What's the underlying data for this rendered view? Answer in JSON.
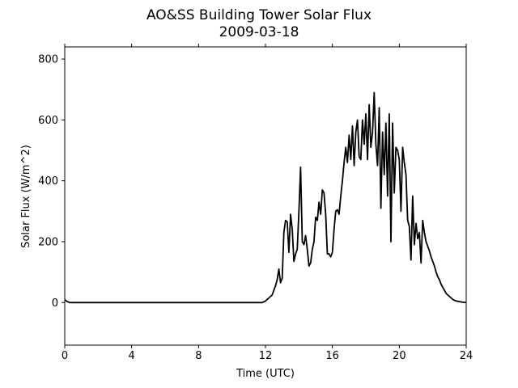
{
  "chart_data": {
    "type": "line",
    "title": "AO&SS Building Tower Solar Flux",
    "subtitle": "2009-03-18",
    "xlabel": "Time (UTC)",
    "ylabel": "Solar Flux (W/m^2)",
    "xlim": [
      0,
      24
    ],
    "ylim": [
      -140,
      840
    ],
    "xticks": [
      0,
      4,
      8,
      12,
      16,
      20,
      24
    ],
    "yticks": [
      0,
      200,
      400,
      600,
      800
    ],
    "grid": false,
    "line_color": "#000000",
    "series": [
      {
        "x": [
          0.0,
          0.1,
          0.2,
          0.3,
          0.5,
          1.0,
          2.0,
          4.0,
          6.0,
          8.0,
          10.0,
          11.8,
          12.0,
          12.2,
          12.4,
          12.5,
          12.6,
          12.7,
          12.8,
          12.9,
          13.0,
          13.1,
          13.2,
          13.3,
          13.4,
          13.5,
          13.6,
          13.7,
          13.8,
          13.9,
          14.0,
          14.1,
          14.2,
          14.3,
          14.4,
          14.5,
          14.6,
          14.7,
          14.8,
          14.9,
          15.0,
          15.1,
          15.2,
          15.3,
          15.4,
          15.5,
          15.6,
          15.7,
          15.8,
          15.9,
          16.0,
          16.1,
          16.2,
          16.3,
          16.4,
          16.5,
          16.6,
          16.7,
          16.8,
          16.9,
          17.0,
          17.1,
          17.2,
          17.3,
          17.4,
          17.5,
          17.6,
          17.7,
          17.8,
          17.9,
          18.0,
          18.1,
          18.2,
          18.3,
          18.4,
          18.5,
          18.6,
          18.7,
          18.8,
          18.9,
          19.0,
          19.1,
          19.2,
          19.3,
          19.4,
          19.5,
          19.6,
          19.7,
          19.8,
          19.9,
          20.0,
          20.1,
          20.2,
          20.3,
          20.4,
          20.5,
          20.6,
          20.7,
          20.8,
          20.9,
          21.0,
          21.1,
          21.2,
          21.3,
          21.4,
          21.5,
          21.6,
          21.7,
          21.8,
          21.9,
          22.0,
          22.1,
          22.2,
          22.3,
          22.4,
          22.5,
          22.6,
          22.7,
          22.8,
          23.0,
          23.2,
          23.4,
          23.6,
          23.8,
          24.0
        ],
        "y": [
          10,
          5,
          2,
          0,
          0,
          0,
          0,
          0,
          0,
          0,
          0,
          0,
          5,
          15,
          25,
          40,
          55,
          75,
          110,
          65,
          80,
          230,
          270,
          265,
          165,
          290,
          240,
          135,
          160,
          175,
          300,
          445,
          200,
          190,
          220,
          175,
          120,
          130,
          175,
          200,
          280,
          270,
          330,
          290,
          370,
          360,
          290,
          160,
          160,
          150,
          165,
          240,
          300,
          305,
          290,
          350,
          400,
          460,
          510,
          460,
          550,
          470,
          580,
          450,
          560,
          600,
          480,
          470,
          600,
          520,
          620,
          470,
          650,
          510,
          560,
          690,
          520,
          450,
          640,
          310,
          560,
          420,
          590,
          350,
          620,
          200,
          590,
          360,
          510,
          500,
          470,
          300,
          510,
          460,
          420,
          270,
          250,
          140,
          350,
          190,
          260,
          210,
          230,
          130,
          270,
          230,
          200,
          185,
          170,
          150,
          135,
          120,
          100,
          85,
          75,
          60,
          50,
          40,
          30,
          20,
          10,
          5,
          3,
          1,
          0
        ]
      }
    ]
  }
}
